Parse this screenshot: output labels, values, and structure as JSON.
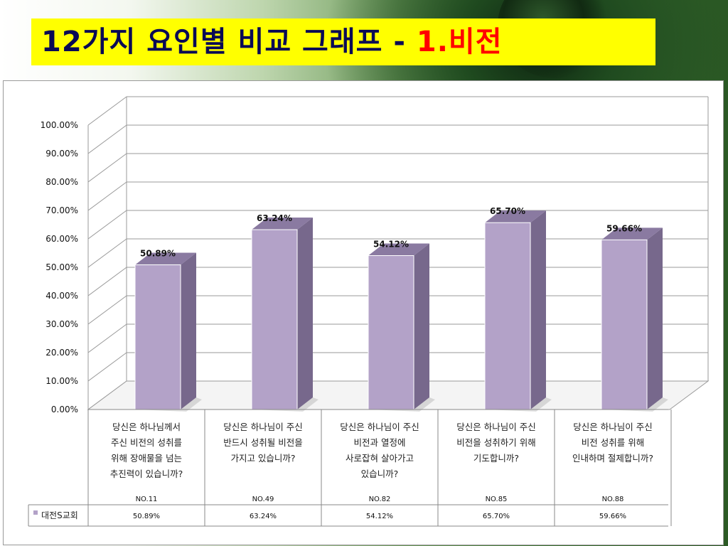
{
  "slide": {
    "title": "12가지 요인별 비교 그래프 - ",
    "title_accent": "1.비전"
  },
  "chart_data": {
    "type": "bar",
    "ylim": [
      0,
      100
    ],
    "y_ticks": [
      "0.00%",
      "10.00%",
      "20.00%",
      "30.00%",
      "40.00%",
      "50.00%",
      "60.00%",
      "70.00%",
      "80.00%",
      "90.00%",
      "100.00%"
    ],
    "categories": [
      {
        "lines": [
          "당신은 하나님께서",
          "주신 비전의 성취를",
          "위해 장애물을 넘는",
          "추진력이 있습니까?"
        ],
        "code": "NO.11"
      },
      {
        "lines": [
          "당신은 하나님이 주신",
          "반드시 성취될 비전을",
          "가지고 있습니까?"
        ],
        "code": "NO.49"
      },
      {
        "lines": [
          "당신은 하나님이 주신",
          "비전과 열정에",
          "사로잡혀 살아가고",
          "있습니까?"
        ],
        "code": "NO.82"
      },
      {
        "lines": [
          "당신은 하나님이 주신",
          "비전을 성취하기 위해",
          "기도합니까?"
        ],
        "code": "NO.85"
      },
      {
        "lines": [
          "당신은 하나님이 주신",
          "비전 성취를 위해",
          "인내하며 절제합니까?"
        ],
        "code": "NO.88"
      }
    ],
    "series": [
      {
        "name": "대전S교회",
        "values": [
          50.89,
          63.24,
          54.12,
          65.7,
          59.66
        ],
        "labels": [
          "50.89%",
          "63.24%",
          "54.12%",
          "65.70%",
          "59.66%"
        ]
      }
    ],
    "colors": {
      "front": "#b3a2c8",
      "side": "#77688c",
      "top": "#8a7aa1",
      "grid": "#9a9a9a"
    },
    "grid": true,
    "legend": "data-table"
  }
}
